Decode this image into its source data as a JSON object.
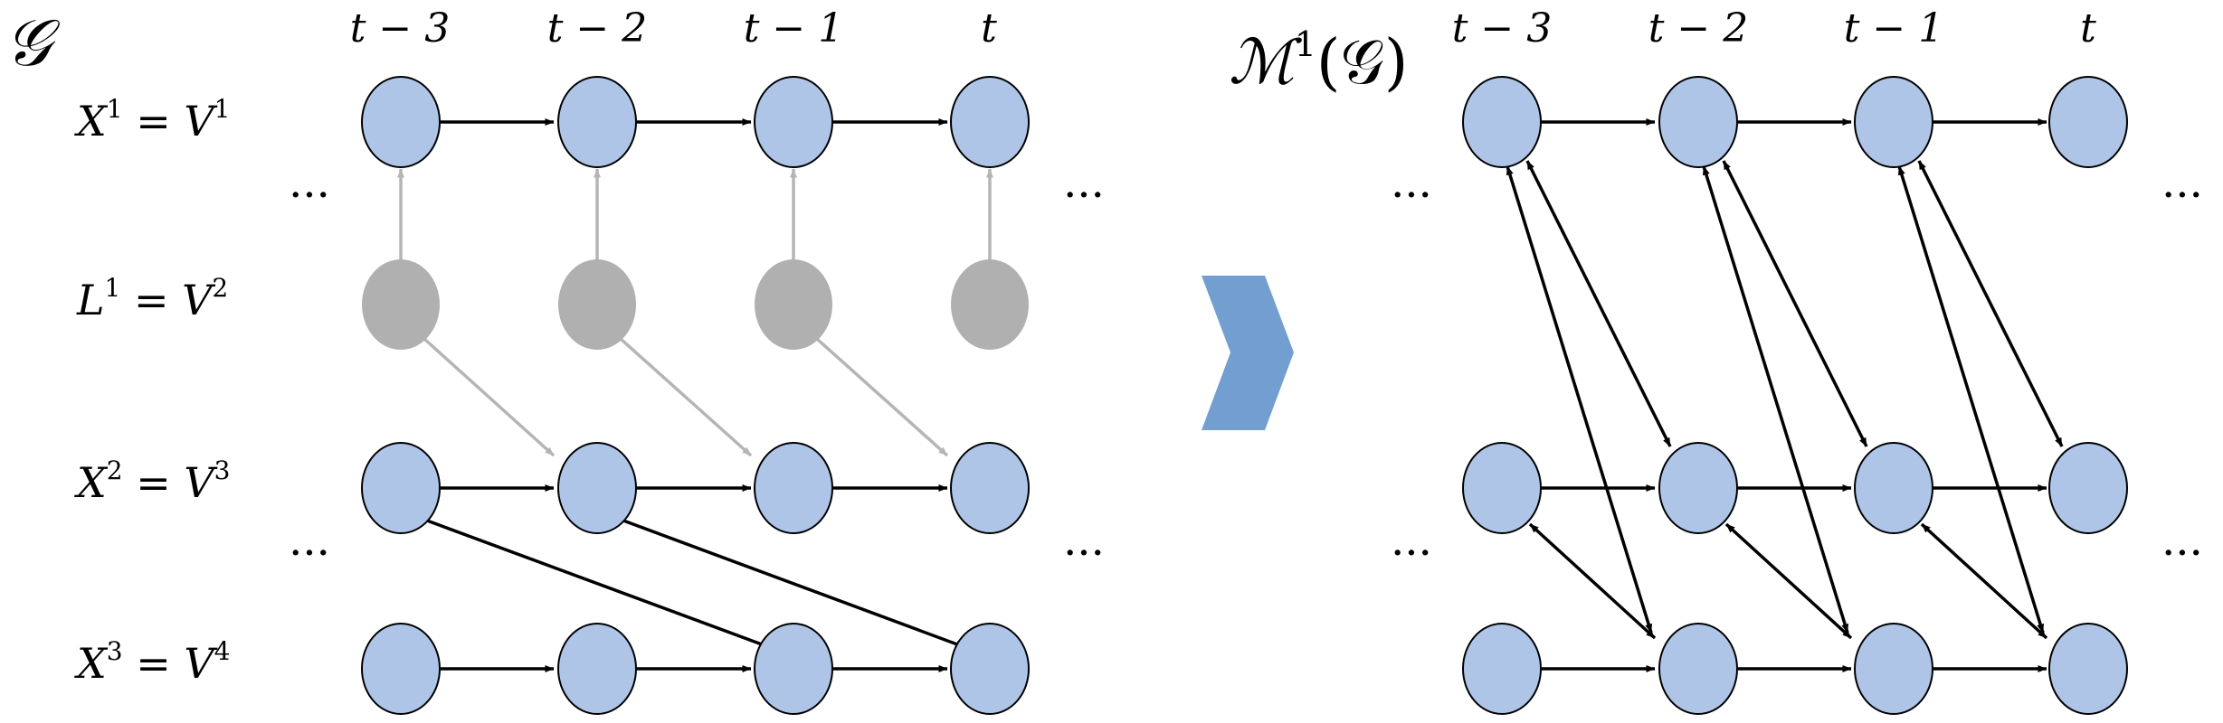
{
  "left_graph": {
    "symbol": "𝒢",
    "time_labels": [
      "t − 3",
      "t − 2",
      "t − 1",
      "t"
    ],
    "row_labels": [
      {
        "var": "X",
        "var_sup": "1",
        "eq": " = ",
        "v": "V",
        "v_sup": "1"
      },
      {
        "var": "L",
        "var_sup": "1",
        "eq": " = ",
        "v": "V",
        "v_sup": "2"
      },
      {
        "var": "X",
        "var_sup": "2",
        "eq": " = ",
        "v": "V",
        "v_sup": "3"
      },
      {
        "var": "X",
        "var_sup": "3",
        "eq": " = ",
        "v": "V",
        "v_sup": "4"
      }
    ],
    "ellipsis": "···"
  },
  "right_graph": {
    "symbol_m": "ℳ",
    "symbol_sup": "1",
    "symbol_arg": "(𝒢)",
    "time_labels": [
      "t − 3",
      "t − 2",
      "t − 1",
      "t"
    ],
    "ellipsis": "···"
  },
  "colors": {
    "observed_fill": "#aec5e8",
    "latent_fill": "#b0b0b0",
    "latent_edge": "#b5b5b5",
    "edge": "#000000",
    "chevron": "#729fd0"
  }
}
